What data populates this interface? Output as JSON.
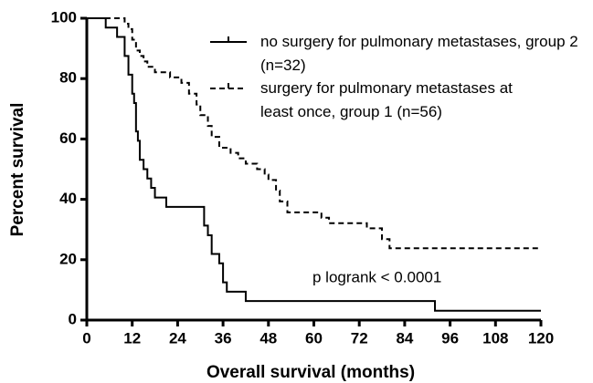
{
  "chart_data": {
    "type": "step",
    "xlabel": "Overall survival (months)",
    "ylabel": "Percent survival",
    "annotation": "p logrank < 0.0001",
    "xlim": [
      0,
      120
    ],
    "xticks": [
      0,
      12,
      24,
      36,
      48,
      60,
      72,
      84,
      96,
      108,
      120
    ],
    "ylim": [
      0,
      100
    ],
    "yticks": [
      0,
      20,
      40,
      60,
      80,
      100
    ],
    "series": [
      {
        "name": "no surgery for pulmonary metastases, group 2 (n=32)",
        "color": "#000000",
        "dash": false,
        "x": [
          0,
          5,
          8,
          10,
          11,
          12,
          12.5,
          13,
          13.5,
          14,
          15,
          16,
          17,
          18,
          21,
          31,
          32,
          33,
          35,
          36,
          37,
          42,
          92,
          120
        ],
        "values": [
          100,
          96.9,
          93.8,
          87.5,
          81.3,
          75,
          71.9,
          62.5,
          59.4,
          53.1,
          50,
          46.9,
          43.8,
          40.6,
          37.5,
          31.3,
          28.1,
          21.9,
          18.8,
          12.5,
          9.4,
          6.3,
          3.1,
          3.1
        ]
      },
      {
        "name": "surgery for pulmonary metastases at least once, group 1 (n=56)",
        "color": "#000000",
        "dash": true,
        "x": [
          0,
          10,
          11,
          12,
          13,
          14,
          15,
          16,
          18,
          22,
          25,
          27,
          29,
          30,
          32,
          33,
          35,
          38,
          40,
          42,
          45,
          47,
          48,
          50,
          51,
          53,
          62,
          64,
          74,
          78,
          80,
          120
        ],
        "values": [
          100,
          98.2,
          96.4,
          92.9,
          89.3,
          87.5,
          85.7,
          83.9,
          82.1,
          80.4,
          78.6,
          75,
          71.4,
          67.9,
          64.3,
          60.7,
          57.1,
          55.4,
          53.6,
          51.8,
          50,
          48.2,
          46.4,
          42.9,
          39.3,
          35.7,
          33.9,
          32.1,
          30.4,
          26.8,
          23.8,
          23.8
        ]
      }
    ]
  }
}
